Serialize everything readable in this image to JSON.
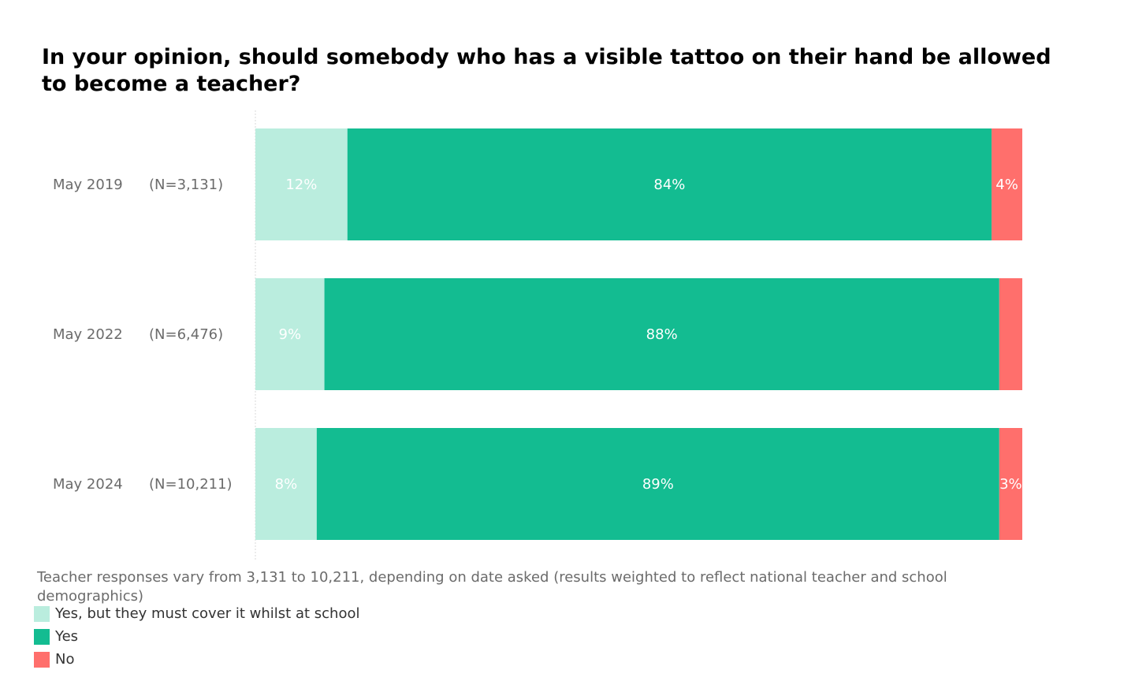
{
  "chart_data": {
    "type": "bar",
    "orientation": "horizontal",
    "stacked": true,
    "title": "In your opinion, should somebody who has a visible tattoo on their hand be allowed to become a teacher?",
    "categories": [
      "May 2019",
      "May 2022",
      "May 2024"
    ],
    "sample_sizes": [
      "(N=3,131)",
      "(N=6,476)",
      "(N=10,211)"
    ],
    "series": [
      {
        "name": "Yes, but they must cover it whilst at school",
        "color": "#BAEDDE",
        "values": [
          12,
          9,
          8
        ],
        "labels": [
          "12%",
          "9%",
          "8%"
        ]
      },
      {
        "name": "Yes",
        "color": "#13BC91",
        "values": [
          84,
          88,
          89
        ],
        "labels": [
          "84%",
          "88%",
          "89%"
        ]
      },
      {
        "name": "No",
        "color": "#FF6F6C",
        "values": [
          4,
          3,
          3
        ],
        "labels": [
          "4%",
          "",
          "3%"
        ]
      }
    ],
    "xlim": [
      0,
      100
    ],
    "grid": false,
    "legend_position": "bottom-left",
    "note": "Teacher responses vary from 3,131 to 10,211, depending on date asked (results weighted to reflect national teacher and school demographics)"
  }
}
